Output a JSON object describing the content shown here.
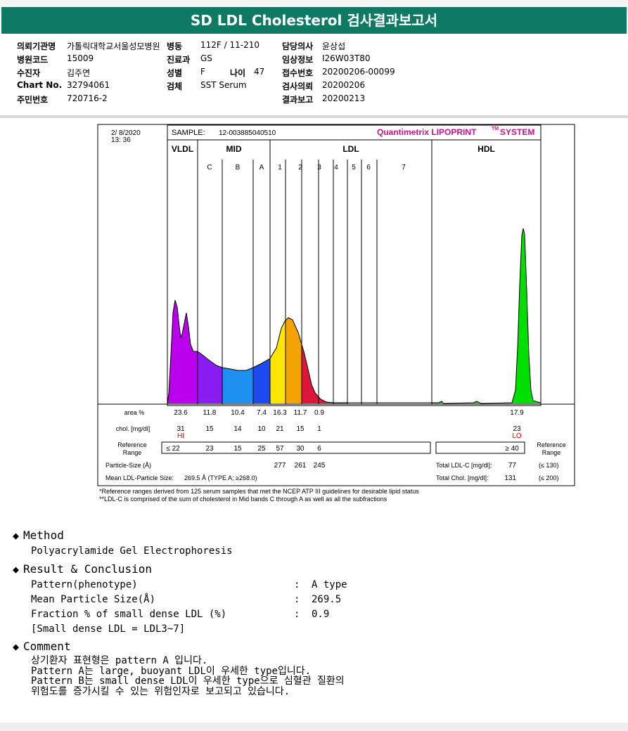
{
  "title": "SD LDL Cholesterol 검사결과보고서",
  "patient_info": {
    "col1": [
      {
        "label": "의뢰기관명",
        "value": "가톨릭대학교서울성모병원"
      },
      {
        "label": "병원코드",
        "value": "15009"
      },
      {
        "label": "수진자",
        "value": "김주연"
      },
      {
        "label": "Chart No.",
        "value": "32794061"
      },
      {
        "label": "주민번호",
        "value": "720716-2"
      }
    ],
    "col2": [
      {
        "label": "병동",
        "value": "112F / 11-210"
      },
      {
        "label": "진료과",
        "value": "GS"
      },
      {
        "label": "성별",
        "value": "F"
      },
      {
        "label": "검체",
        "value": "SST Serum"
      }
    ],
    "age": {
      "label": "나이",
      "value": "47"
    },
    "col3": [
      {
        "label": "담당의사",
        "value": "윤상섭"
      },
      {
        "label": "임상정보",
        "value": "I26W03T80"
      },
      {
        "label": "접수번호",
        "value": "20200206-00099"
      },
      {
        "label": "검사의뢰",
        "value": "20200206"
      },
      {
        "label": "결과보고",
        "value": "20200213"
      }
    ]
  },
  "report": {
    "date": "2/ 8/2020",
    "time": "13: 36",
    "sample_label": "SAMPLE:",
    "sample_id": "12-003885040510",
    "system_name": "Quantimetrix LIPOPRINT",
    "system_tm": "TM",
    "system_suffix": "SYSTEM",
    "groups": [
      "VLDL",
      "MID",
      "LDL",
      "HDL"
    ],
    "bands": [
      "C",
      "B",
      "A",
      "1",
      "2",
      "3",
      "4",
      "5",
      "6",
      "7"
    ],
    "rows": {
      "area_label": "area %",
      "chol_label": "chol. [mg/dl]",
      "ref_label_1": "Reference",
      "ref_label_2": "Range",
      "ref_right_1": "Reference",
      "ref_right_2": "Range",
      "size_label": "Particle-Size (Å)",
      "mean_label": "Mean LDL-Particle Size:",
      "mean_value": "269.5 Å  (TYPE A; ≥268.0)",
      "area": [
        "23.6",
        "11.8",
        "10.4",
        "7.4",
        "16.3",
        "11.7",
        "0.9",
        "17.9"
      ],
      "chol": [
        "31",
        "15",
        "14",
        "10",
        "21",
        "15",
        "1",
        "23"
      ],
      "flags": {
        "vldl": "HI",
        "hdl": "LO"
      },
      "ref": [
        "≤ 22",
        "23",
        "15",
        "25",
        "57",
        "30",
        "6",
        "≥ 40"
      ],
      "sizes": [
        "277",
        "261",
        "245"
      ],
      "total_ldl_label": "Total LDL-C [mg/dl]:",
      "total_ldl_value": "77",
      "total_ldl_ref": "(≤ 130)",
      "total_chol_label": "Total Chol. [mg/dl]:",
      "total_chol_value": "131",
      "total_chol_ref": "(≤ 200)"
    },
    "note1": "*Reference ranges derived from 125 serum samples that met the NCEP ATP III guidelines for desirable lipid status",
    "note2": "**LDL-C is comprised of the sum of cholesterol in Mid bands C through A as well as all the subfractions"
  },
  "sections": {
    "method_title": "Method",
    "method_text": "Polyacrylamide Gel Electrophoresis",
    "result_title": "Result & Conclusion",
    "result_rows": [
      {
        "label": "Pattern(phenotype)",
        "sep": ":",
        "value": "A type"
      },
      {
        "label": "Mean Particle Size(Å)",
        "sep": ":",
        "value": "269.5"
      },
      {
        "label": "Fraction % of small dense LDL (%)",
        "sep": ":",
        "value": "0.9"
      }
    ],
    "result_note": "[Small dense LDL = LDL3~7]",
    "comment_title": "Comment",
    "comment_lines": [
      "상기환자 표현형은 pattern A 입니다.",
      "Pattern A는 large, buoyant LDL이 우세한 type입니다.",
      "Pattern B는 small dense LDL이 우세한 type으로 심혈관 질환의",
      "위험도를 증가시킬 수 있는 위험인자로 보고되고 있습니다."
    ]
  },
  "chart_data": {
    "type": "area",
    "title": "",
    "categories": [
      "VLDL",
      "C",
      "B",
      "A",
      "1",
      "2",
      "3",
      "4",
      "5",
      "6",
      "7",
      "HDL"
    ],
    "series": [
      {
        "values": [
          23.6,
          11.8,
          10.4,
          7.4,
          16.3,
          11.7,
          0.9,
          0,
          0,
          0,
          0,
          17.9
        ]
      }
    ],
    "band_colors": [
      "#bb00ee",
      "#8a1df2",
      "#1e90f0",
      "#1d4af0",
      "#ffe600",
      "#f5a300",
      "#e0153a",
      "#e0153a",
      "#e0153a",
      "#e0153a",
      "#e0153a",
      "#00e000"
    ]
  }
}
